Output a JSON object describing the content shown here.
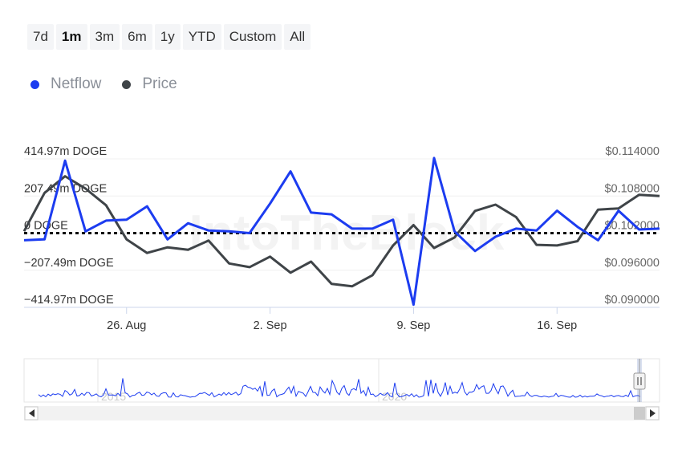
{
  "range_buttons": [
    "7d",
    "1m",
    "3m",
    "6m",
    "1y",
    "YTD",
    "Custom",
    "All"
  ],
  "active_range": "1m",
  "legend": [
    {
      "label": "Netflow",
      "color": "#1c3cf0"
    },
    {
      "label": "Price",
      "color": "#3f4448"
    }
  ],
  "watermark": "IntoTheBlock",
  "navigator": {
    "year_labels": [
      "2015",
      "2020"
    ],
    "scroll_left_icon": "triangle-left-icon",
    "scroll_right_icon": "triangle-right-icon",
    "handle_icon": "grip-icon"
  },
  "chart_data": {
    "type": "line",
    "left_axis": {
      "tick_labels": [
        "414.97m DOGE",
        "207.49m DOGE",
        "0 DOGE",
        "−207.49m DOGE",
        "−414.97m DOGE"
      ],
      "range": [
        -414.97,
        414.97
      ],
      "unit": "m DOGE"
    },
    "right_axis": {
      "tick_labels": [
        "$0.114000",
        "$0.108000",
        "$0.102000",
        "$0.096000",
        "$0.090000"
      ],
      "range": [
        0.09,
        0.114
      ]
    },
    "x_tick_labels": [
      "26. Aug",
      "2. Sep",
      "9. Sep",
      "16. Sep"
    ],
    "x_tick_dates": [
      "2023-08-26",
      "2023-09-02",
      "2023-09-09",
      "2023-09-16"
    ],
    "x_range": [
      "2023-08-21",
      "2023-09-21"
    ],
    "zero_line": "dotted",
    "series": [
      {
        "name": "Netflow",
        "axis": "left",
        "color": "#1c3cf0",
        "x": [
          "2023-08-21",
          "2023-08-22",
          "2023-08-23",
          "2023-08-24",
          "2023-08-25",
          "2023-08-26",
          "2023-08-27",
          "2023-08-28",
          "2023-08-29",
          "2023-08-30",
          "2023-08-31",
          "2023-09-01",
          "2023-09-02",
          "2023-09-03",
          "2023-09-04",
          "2023-09-05",
          "2023-09-06",
          "2023-09-07",
          "2023-09-08",
          "2023-09-09",
          "2023-09-10",
          "2023-09-11",
          "2023-09-12",
          "2023-09-13",
          "2023-09-14",
          "2023-09-15",
          "2023-09-16",
          "2023-09-17",
          "2023-09-18",
          "2023-09-19",
          "2023-09-20",
          "2023-09-21"
        ],
        "values": [
          -40,
          -35,
          405,
          10,
          70,
          75,
          150,
          -35,
          55,
          15,
          10,
          0,
          165,
          345,
          115,
          105,
          25,
          25,
          75,
          -400,
          420,
          10,
          -100,
          -20,
          25,
          15,
          125,
          35,
          -40,
          125,
          20,
          25
        ]
      },
      {
        "name": "Price",
        "axis": "right",
        "color": "#3f4448",
        "x": [
          "2023-08-21",
          "2023-08-22",
          "2023-08-23",
          "2023-08-24",
          "2023-08-25",
          "2023-08-26",
          "2023-08-27",
          "2023-08-28",
          "2023-08-29",
          "2023-08-30",
          "2023-08-31",
          "2023-09-01",
          "2023-09-02",
          "2023-09-03",
          "2023-09-04",
          "2023-09-05",
          "2023-09-06",
          "2023-09-07",
          "2023-09-08",
          "2023-09-09",
          "2023-09-10",
          "2023-09-11",
          "2023-09-12",
          "2023-09-13",
          "2023-09-14",
          "2023-09-15",
          "2023-09-16",
          "2023-09-17",
          "2023-09-18",
          "2023-09-19",
          "2023-09-20",
          "2023-09-21"
        ],
        "values": [
          0.1023,
          0.1085,
          0.1112,
          0.1092,
          0.1065,
          0.101,
          0.0988,
          0.0997,
          0.0993,
          0.1008,
          0.0971,
          0.0965,
          0.0982,
          0.0956,
          0.0974,
          0.0938,
          0.0934,
          0.0952,
          0.1,
          0.1033,
          0.0996,
          0.1013,
          0.1056,
          0.1066,
          0.1046,
          0.1001,
          0.1,
          0.1007,
          0.1058,
          0.106,
          0.1082,
          0.108
        ]
      }
    ]
  }
}
